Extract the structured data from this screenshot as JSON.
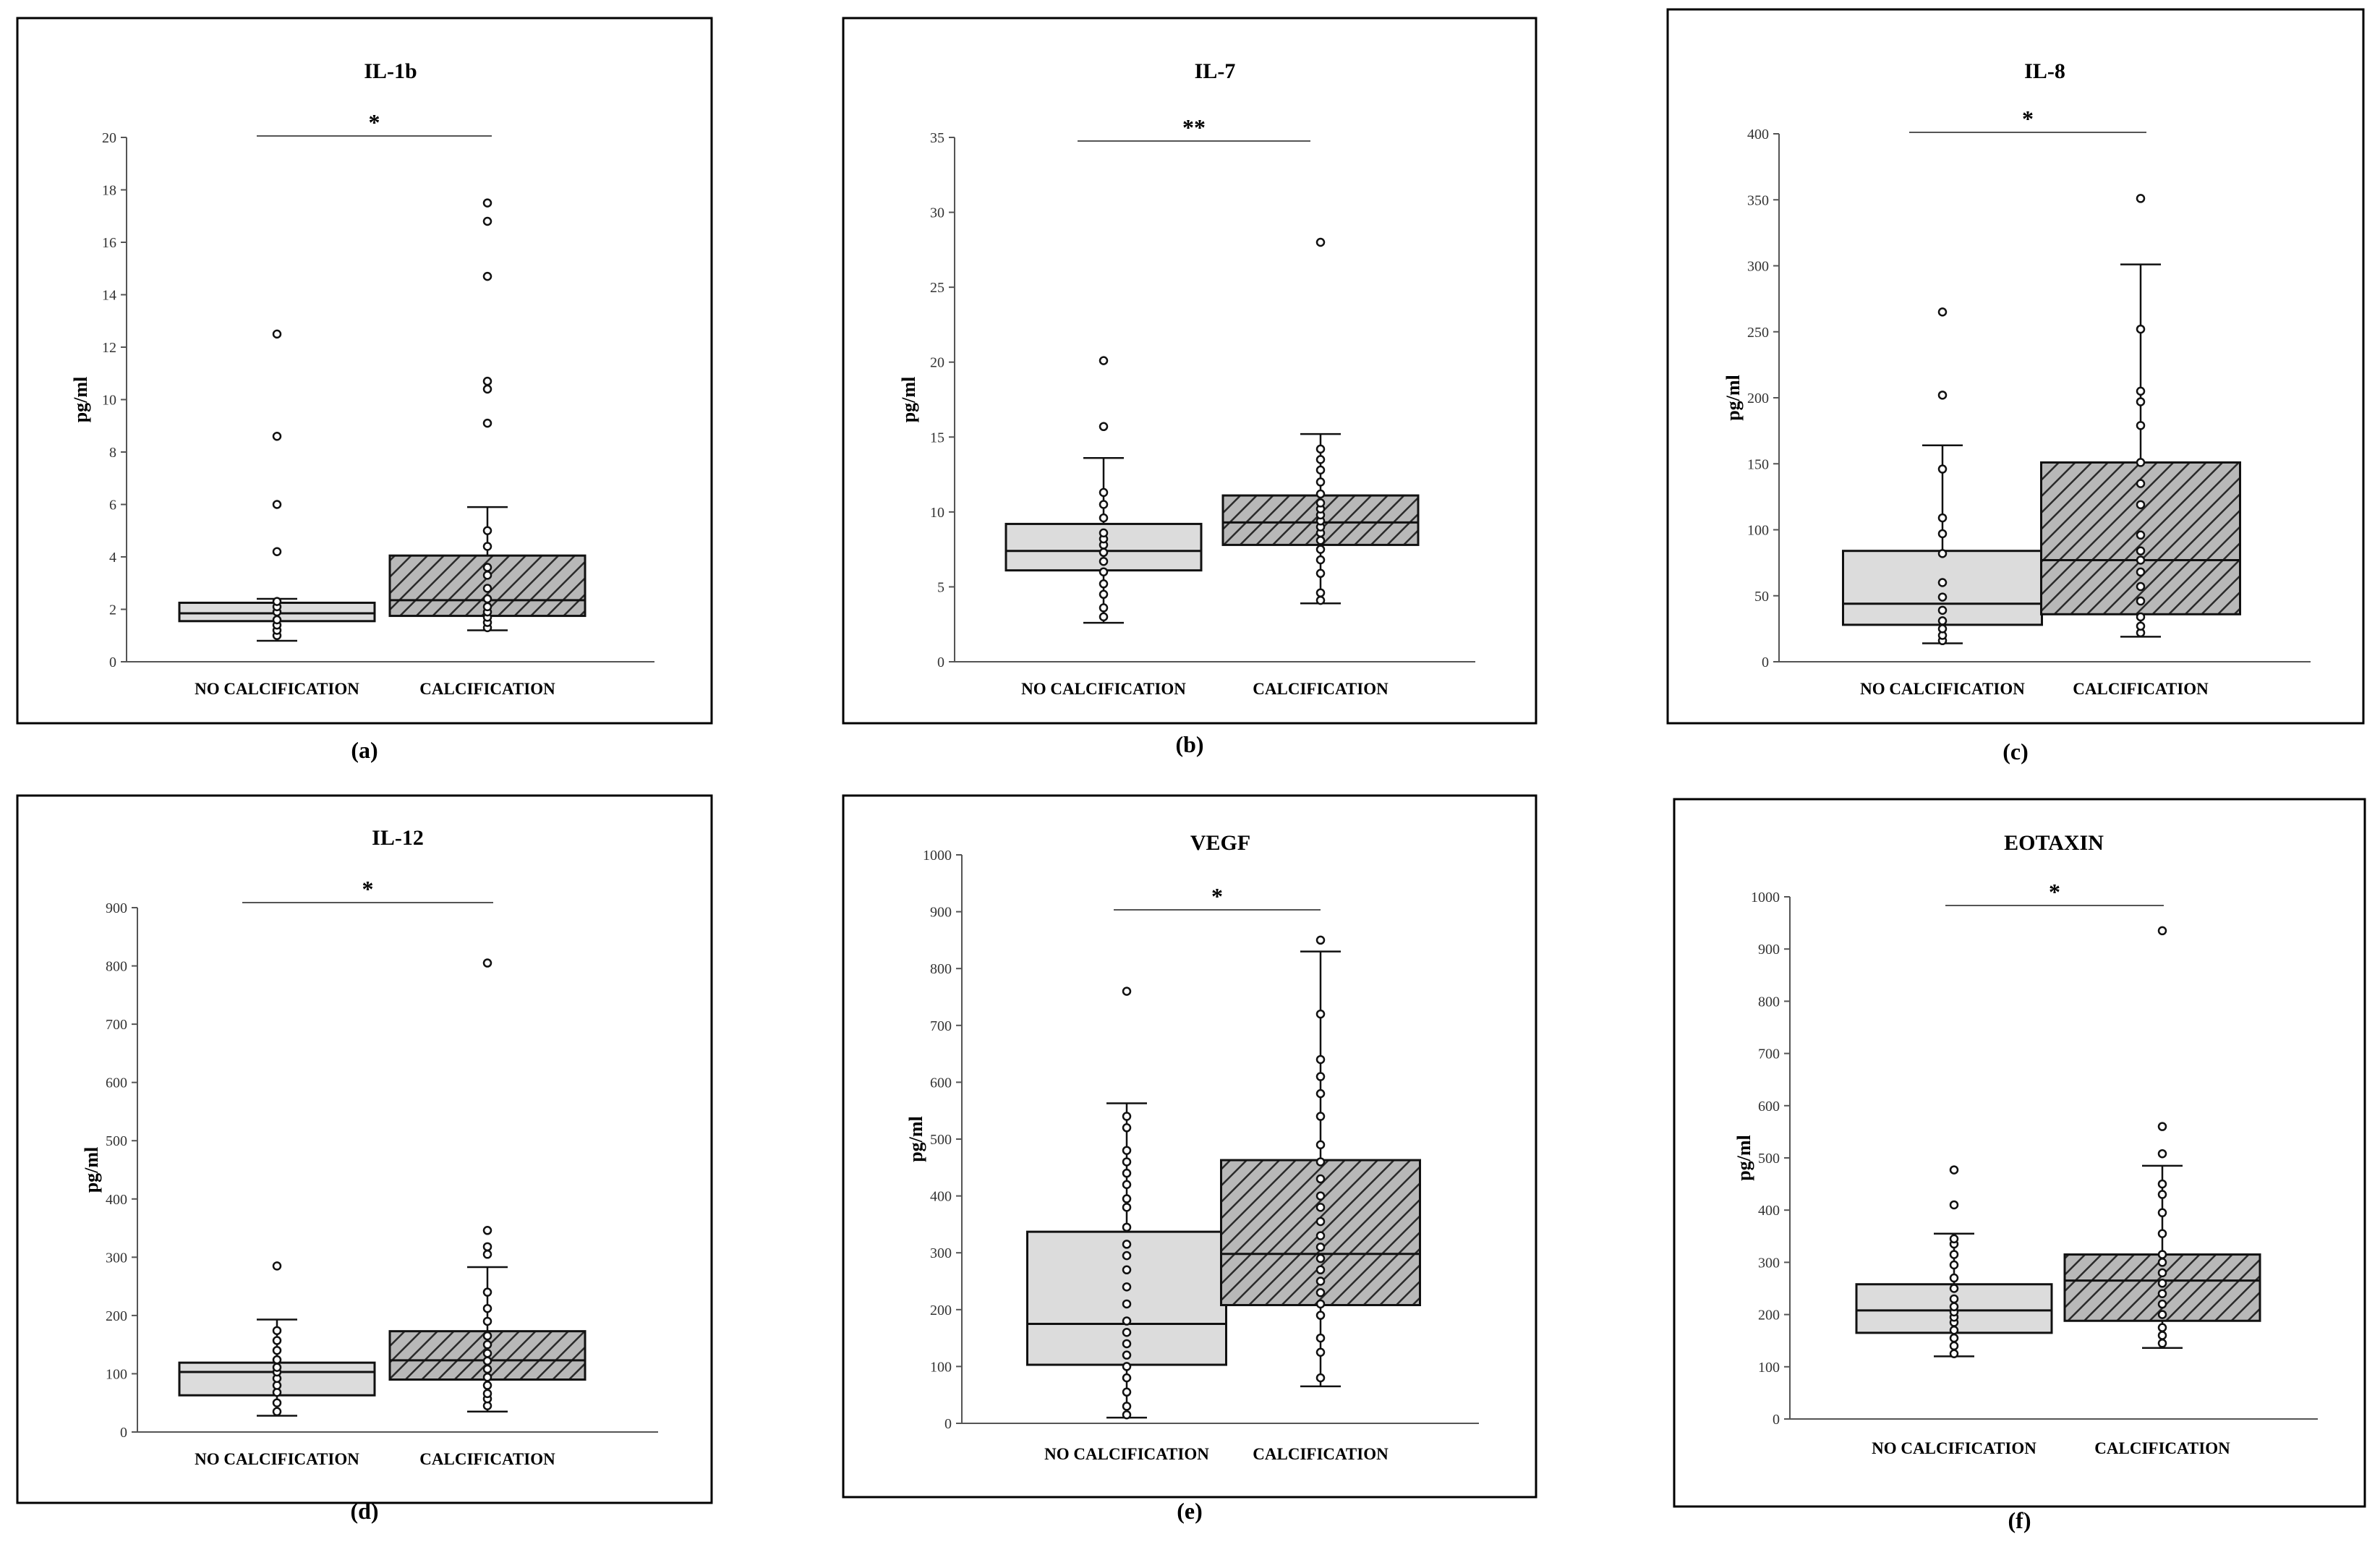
{
  "chart_data": [
    {
      "type": "boxplot",
      "panel_label": "(a)",
      "title": "IL-1b",
      "ylabel": "pg/ml",
      "ylim": [
        0,
        20
      ],
      "yticks": [
        0,
        2,
        4,
        6,
        8,
        10,
        12,
        14,
        16,
        18,
        20
      ],
      "significance": "*",
      "categories": [
        "NO CALCIFICATION",
        "CALCIFICATION"
      ],
      "groups": [
        {
          "name": "NO CALCIFICATION",
          "whisker_low": 0.8,
          "q1": 1.55,
          "median": 1.85,
          "q3": 2.25,
          "whisker_high": 2.4,
          "points": [
            1.0,
            1.2,
            1.4,
            1.6,
            1.9,
            2.1,
            2.3,
            4.2,
            6.0,
            8.6,
            12.5
          ]
        },
        {
          "name": "CALCIFICATION",
          "whisker_low": 1.2,
          "q1": 1.75,
          "median": 2.35,
          "q3": 4.05,
          "whisker_high": 5.9,
          "points": [
            1.3,
            1.5,
            1.7,
            1.9,
            2.1,
            2.4,
            2.8,
            3.3,
            3.6,
            4.4,
            5.0,
            9.1,
            10.4,
            10.7,
            14.7,
            16.8,
            17.5
          ]
        }
      ]
    },
    {
      "type": "boxplot",
      "panel_label": "(b)",
      "title": "IL-7",
      "ylabel": "pg/ml",
      "ylim": [
        0,
        35
      ],
      "yticks": [
        0,
        5,
        10,
        15,
        20,
        25,
        30,
        35
      ],
      "significance": "**",
      "categories": [
        "NO CALCIFICATION",
        "CALCIFICATION"
      ],
      "groups": [
        {
          "name": "NO CALCIFICATION",
          "whisker_low": 2.6,
          "q1": 6.1,
          "median": 7.4,
          "q3": 9.2,
          "whisker_high": 13.6,
          "points": [
            3.0,
            3.6,
            4.5,
            5.2,
            6.0,
            6.7,
            7.3,
            7.8,
            8.2,
            8.6,
            9.6,
            10.5,
            11.3,
            15.7,
            20.1
          ]
        },
        {
          "name": "CALCIFICATION",
          "whisker_low": 3.9,
          "q1": 7.8,
          "median": 9.3,
          "q3": 11.1,
          "whisker_high": 15.2,
          "points": [
            4.1,
            4.6,
            5.9,
            6.8,
            7.5,
            8.1,
            8.6,
            9.0,
            9.4,
            9.8,
            10.2,
            10.6,
            11.2,
            12.0,
            12.8,
            13.5,
            14.2,
            28.0
          ]
        }
      ]
    },
    {
      "type": "boxplot",
      "panel_label": "(c)",
      "title": "IL-8",
      "ylabel": "pg/ml",
      "ylim": [
        0,
        400
      ],
      "yticks": [
        0,
        50,
        100,
        150,
        200,
        250,
        300,
        350,
        400
      ],
      "significance": "*",
      "categories": [
        "NO CALCIFICATION",
        "CALCIFICATION"
      ],
      "groups": [
        {
          "name": "NO CALCIFICATION",
          "whisker_low": 14,
          "q1": 28,
          "median": 44,
          "q3": 84,
          "whisker_high": 164,
          "points": [
            16,
            20,
            25,
            31,
            39,
            49,
            60,
            82,
            97,
            109,
            146,
            202,
            265
          ]
        },
        {
          "name": "CALCIFICATION",
          "whisker_low": 19,
          "q1": 36,
          "median": 77,
          "q3": 151,
          "whisker_high": 301,
          "points": [
            22,
            27,
            34,
            46,
            57,
            68,
            77,
            84,
            96,
            119,
            135,
            151,
            179,
            197,
            205,
            252,
            351
          ]
        }
      ]
    },
    {
      "type": "boxplot",
      "panel_label": "(d)",
      "title": "IL-12",
      "ylabel": "pg/ml",
      "ylim": [
        0,
        900
      ],
      "yticks": [
        0,
        100,
        200,
        300,
        400,
        500,
        600,
        700,
        800,
        900
      ],
      "significance": "*",
      "categories": [
        "NO CALCIFICATION",
        "CALCIFICATION"
      ],
      "groups": [
        {
          "name": "NO CALCIFICATION",
          "whisker_low": 28,
          "q1": 63,
          "median": 103,
          "q3": 119,
          "whisker_high": 193,
          "points": [
            35,
            50,
            68,
            80,
            92,
            103,
            111,
            124,
            140,
            157,
            174,
            285
          ]
        },
        {
          "name": "CALCIFICATION",
          "whisker_low": 35,
          "q1": 90,
          "median": 123,
          "q3": 173,
          "whisker_high": 283,
          "points": [
            45,
            57,
            66,
            80,
            94,
            108,
            122,
            135,
            150,
            165,
            190,
            212,
            240,
            305,
            318,
            346,
            805
          ]
        }
      ]
    },
    {
      "type": "boxplot",
      "panel_label": "(e)",
      "title": "VEGF",
      "ylabel": "pg/ml",
      "ylim": [
        0,
        1000
      ],
      "yticks": [
        0,
        100,
        200,
        300,
        400,
        500,
        600,
        700,
        800,
        900,
        1000
      ],
      "significance": "*",
      "categories": [
        "NO CALCIFICATION",
        "CALCIFICATION"
      ],
      "groups": [
        {
          "name": "NO CALCIFICATION",
          "whisker_low": 10,
          "q1": 103,
          "median": 175,
          "q3": 337,
          "whisker_high": 563,
          "points": [
            15,
            30,
            55,
            80,
            100,
            120,
            140,
            160,
            180,
            210,
            240,
            270,
            295,
            315,
            345,
            380,
            395,
            420,
            440,
            460,
            480,
            520,
            540,
            760
          ]
        },
        {
          "name": "CALCIFICATION",
          "whisker_low": 65,
          "q1": 208,
          "median": 298,
          "q3": 463,
          "whisker_high": 830,
          "points": [
            80,
            125,
            150,
            190,
            210,
            230,
            250,
            270,
            290,
            310,
            330,
            355,
            380,
            400,
            430,
            460,
            490,
            540,
            580,
            610,
            640,
            720,
            850
          ]
        }
      ]
    },
    {
      "type": "boxplot",
      "panel_label": "(f)",
      "title": "EOTAXIN",
      "ylabel": "pg/ml",
      "ylim": [
        0,
        1000
      ],
      "yticks": [
        0,
        100,
        200,
        300,
        400,
        500,
        600,
        700,
        800,
        900,
        1000
      ],
      "significance": "*",
      "categories": [
        "NO CALCIFICATION",
        "CALCIFICATION"
      ],
      "groups": [
        {
          "name": "NO CALCIFICATION",
          "whisker_low": 120,
          "q1": 165,
          "median": 208,
          "q3": 258,
          "whisker_high": 355,
          "points": [
            125,
            140,
            155,
            170,
            185,
            195,
            205,
            215,
            230,
            250,
            270,
            295,
            315,
            335,
            345,
            410,
            477
          ]
        },
        {
          "name": "CALCIFICATION",
          "whisker_low": 136,
          "q1": 188,
          "median": 265,
          "q3": 315,
          "whisker_high": 485,
          "points": [
            145,
            160,
            175,
            200,
            220,
            240,
            260,
            280,
            300,
            315,
            355,
            395,
            430,
            450,
            508,
            560,
            935
          ]
        }
      ]
    }
  ]
}
